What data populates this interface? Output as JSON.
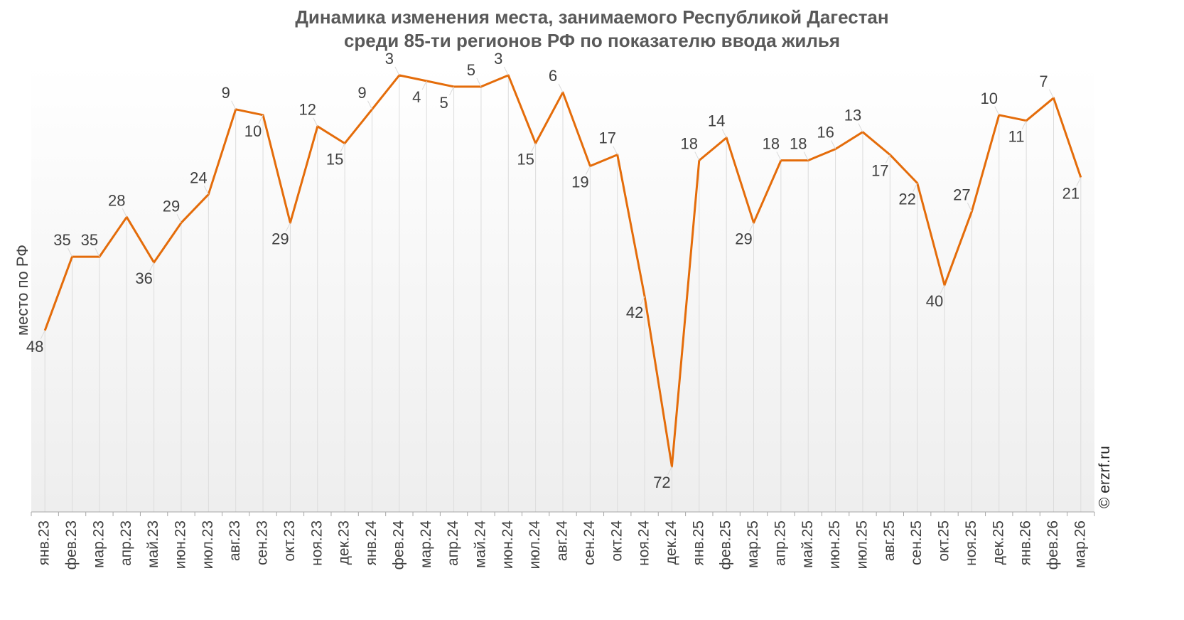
{
  "chart_data": {
    "type": "line",
    "title": "Динамика изменения места, занимаемого Республикой Дагестан",
    "subtitle": "среди 85-ти регионов РФ по показателю ввода жилья",
    "ylabel": "место по РФ",
    "xlabel": "",
    "y_reversed": true,
    "ylim": [
      1,
      80
    ],
    "grid": "vertical drop lines per point",
    "legend": "none",
    "categories": [
      "янв.23",
      "фев.23",
      "мар.23",
      "апр.23",
      "май.23",
      "июн.23",
      "июл.23",
      "авг.23",
      "сен.23",
      "окт.23",
      "ноя.23",
      "дек.23",
      "янв.24",
      "фев.24",
      "мар.24",
      "апр.24",
      "май.24",
      "июн.24",
      "июл.24",
      "авг.24",
      "сен.24",
      "окт.24",
      "ноя.24",
      "дек.24",
      "янв.25",
      "фев.25",
      "мар.25",
      "апр.25",
      "май.25",
      "июн.25",
      "июл.25",
      "авг.25",
      "сен.25",
      "окт.25",
      "ноя.25",
      "дек.25",
      "янв.26",
      "фев.26",
      "мар.26"
    ],
    "series": [
      {
        "values": [
          48,
          35,
          35,
          28,
          36,
          29,
          24,
          9,
          10,
          29,
          12,
          15,
          9,
          3,
          4,
          5,
          5,
          3,
          15,
          6,
          19,
          17,
          42,
          72,
          18,
          14,
          29,
          18,
          18,
          16,
          13,
          17,
          22,
          40,
          27,
          10,
          11,
          7,
          21
        ],
        "color": "#E46C0A"
      }
    ],
    "watermark": "© erzrf.ru"
  }
}
